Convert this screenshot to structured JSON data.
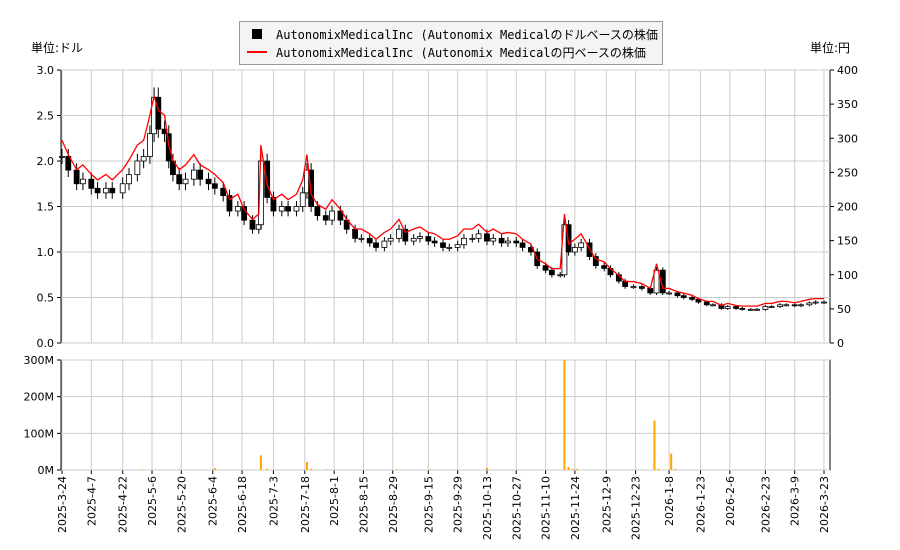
{
  "chart_data": [
    {
      "type": "candlestick+line",
      "left_unit_label": "単位:ドル",
      "right_unit_label": "単位:円",
      "left_ylim": [
        0,
        3.0
      ],
      "left_ticks": [
        "0.0",
        "0.5",
        "1.0",
        "1.5",
        "2.0",
        "2.5",
        "3.0"
      ],
      "right_ylim": [
        0,
        400
      ],
      "right_ticks": [
        "0",
        "50",
        "100",
        "150",
        "200",
        "250",
        "300",
        "350",
        "400"
      ],
      "grid": true,
      "legend_position": "top-center",
      "series": [
        {
          "name": "AutonomixMedicalInc (Autonomix Medicalのドルベースの株価",
          "color": "#000000",
          "axis": "left"
        },
        {
          "name": "AutonomixMedicalInc (Autonomix Medicalの円ベースの株価",
          "color": "#ff0000",
          "axis": "right"
        }
      ],
      "dates": [
        "2025-03-24",
        "2025-03-27",
        "2025-03-31",
        "2025-04-03",
        "2025-04-07",
        "2025-04-10",
        "2025-04-14",
        "2025-04-17",
        "2025-04-22",
        "2025-04-25",
        "2025-04-29",
        "2025-05-02",
        "2025-05-05",
        "2025-05-07",
        "2025-05-09",
        "2025-05-12",
        "2025-05-14",
        "2025-05-16",
        "2025-05-19",
        "2025-05-22",
        "2025-05-26",
        "2025-05-29",
        "2025-06-02",
        "2025-06-05",
        "2025-06-09",
        "2025-06-12",
        "2025-06-16",
        "2025-06-19",
        "2025-06-23",
        "2025-06-26",
        "2025-06-27",
        "2025-06-30",
        "2025-07-03",
        "2025-07-07",
        "2025-07-10",
        "2025-07-14",
        "2025-07-17",
        "2025-07-19",
        "2025-07-21",
        "2025-07-24",
        "2025-07-28",
        "2025-07-31",
        "2025-08-04",
        "2025-08-07",
        "2025-08-11",
        "2025-08-14",
        "2025-08-18",
        "2025-08-21",
        "2025-08-25",
        "2025-08-28",
        "2025-09-01",
        "2025-09-04",
        "2025-09-08",
        "2025-09-11",
        "2025-09-15",
        "2025-09-18",
        "2025-09-22",
        "2025-09-25",
        "2025-09-29",
        "2025-10-02",
        "2025-10-06",
        "2025-10-09",
        "2025-10-13",
        "2025-10-16",
        "2025-10-20",
        "2025-10-23",
        "2025-10-27",
        "2025-10-30",
        "2025-11-03",
        "2025-11-06",
        "2025-11-10",
        "2025-11-13",
        "2025-11-17",
        "2025-11-19",
        "2025-11-21",
        "2025-11-24",
        "2025-11-27",
        "2025-12-01",
        "2025-12-04",
        "2025-12-08",
        "2025-12-11",
        "2025-12-15",
        "2025-12-18",
        "2025-12-22",
        "2025-12-26",
        "2025-12-30",
        "2026-01-02",
        "2026-01-05",
        "2026-01-08",
        "2026-01-12",
        "2026-01-15",
        "2026-01-19",
        "2026-01-22",
        "2026-01-26",
        "2026-01-29",
        "2026-02-02",
        "2026-02-05",
        "2026-02-09",
        "2026-02-12",
        "2026-02-16",
        "2026-02-19",
        "2026-02-23",
        "2026-02-26",
        "2026-03-02",
        "2026-03-05",
        "2026-03-09",
        "2026-03-12",
        "2026-03-16",
        "2026-03-19",
        "2026-03-23"
      ],
      "usd": [
        2.05,
        1.9,
        1.75,
        1.8,
        1.7,
        1.65,
        1.7,
        1.65,
        1.75,
        1.85,
        2.0,
        2.05,
        2.3,
        2.7,
        2.35,
        2.3,
        2.0,
        1.85,
        1.75,
        1.8,
        1.9,
        1.8,
        1.75,
        1.7,
        1.62,
        1.45,
        1.5,
        1.35,
        1.25,
        1.3,
        2.0,
        1.6,
        1.45,
        1.5,
        1.45,
        1.5,
        1.65,
        1.9,
        1.5,
        1.4,
        1.35,
        1.45,
        1.35,
        1.25,
        1.15,
        1.15,
        1.1,
        1.05,
        1.12,
        1.15,
        1.25,
        1.12,
        1.15,
        1.17,
        1.12,
        1.1,
        1.05,
        1.05,
        1.08,
        1.15,
        1.15,
        1.2,
        1.12,
        1.15,
        1.1,
        1.12,
        1.1,
        1.05,
        1.0,
        0.85,
        0.8,
        0.75,
        0.75,
        1.3,
        1.0,
        1.05,
        1.1,
        0.95,
        0.85,
        0.82,
        0.75,
        0.68,
        0.62,
        0.62,
        0.6,
        0.55,
        0.8,
        0.55,
        0.55,
        0.52,
        0.5,
        0.48,
        0.45,
        0.42,
        0.42,
        0.38,
        0.4,
        0.38,
        0.37,
        0.37,
        0.37,
        0.4,
        0.4,
        0.42,
        0.42,
        0.41,
        0.42,
        0.44,
        0.45,
        0.45
      ],
      "jpy": [
        297,
        276,
        254,
        261,
        247,
        239,
        247,
        239,
        254,
        268,
        290,
        297,
        334,
        362,
        341,
        334,
        290,
        268,
        254,
        261,
        276,
        261,
        254,
        247,
        235,
        210,
        218,
        196,
        181,
        189,
        290,
        232,
        210,
        218,
        210,
        218,
        239,
        276,
        218,
        203,
        196,
        210,
        196,
        181,
        167,
        167,
        160,
        152,
        162,
        167,
        181,
        162,
        167,
        170,
        162,
        160,
        152,
        152,
        157,
        167,
        167,
        174,
        162,
        167,
        160,
        162,
        160,
        152,
        145,
        123,
        116,
        109,
        109,
        189,
        145,
        152,
        160,
        138,
        123,
        119,
        109,
        99,
        90,
        90,
        87,
        80,
        116,
        80,
        80,
        75,
        73,
        70,
        65,
        61,
        61,
        55,
        58,
        55,
        54,
        54,
        54,
        58,
        58,
        61,
        61,
        59,
        61,
        64,
        65,
        65
      ]
    },
    {
      "type": "bar",
      "ylim": [
        0,
        300
      ],
      "y_ticks": [
        "0M",
        "100M",
        "200M",
        "300M"
      ],
      "color": "#ffa500",
      "grid": true,
      "x_tick_labels": [
        "2025-3-24",
        "2025-4-7",
        "2025-4-22",
        "2025-5-6",
        "2025-5-20",
        "2025-6-4",
        "2025-6-18",
        "2025-7-3",
        "2025-7-18",
        "2025-8-1",
        "2025-8-15",
        "2025-8-29",
        "2025-9-15",
        "2025-9-29",
        "2025-10-13",
        "2025-10-27",
        "2025-11-10",
        "2025-11-24",
        "2025-12-9",
        "2025-12-23",
        "2026-1-8",
        "2026-1-23",
        "2026-2-6",
        "2026-2-23",
        "2026-3-9",
        "2026-3-23"
      ],
      "dates": [
        "2025-05-01",
        "2025-05-19",
        "2025-06-05",
        "2025-06-27",
        "2025-06-30",
        "2025-07-19",
        "2025-07-21",
        "2025-07-28",
        "2025-08-31",
        "2025-09-16",
        "2025-10-13",
        "2025-11-19",
        "2025-11-21",
        "2025-11-23",
        "2025-11-25",
        "2026-01-01",
        "2026-01-03",
        "2026-01-09",
        "2026-01-11"
      ],
      "values": [
        2,
        2,
        5,
        40,
        3,
        22,
        3,
        2,
        2,
        2,
        6,
        300,
        8,
        3,
        3,
        135,
        3,
        45,
        3
      ]
    }
  ]
}
